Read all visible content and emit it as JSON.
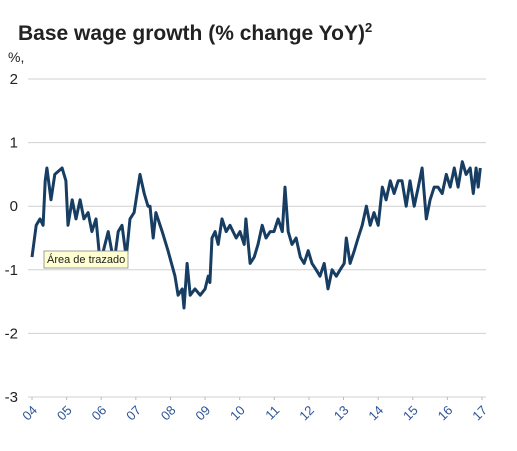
{
  "chart_data": {
    "type": "line",
    "title": "Base wage growth (% change YoY)",
    "title_superscript": "2",
    "y_unit_label": "%,",
    "tooltip": "Área de trazado",
    "xlim": [
      4,
      17
    ],
    "xticks": [
      {
        "value": 4,
        "label": "04"
      },
      {
        "value": 5,
        "label": "05"
      },
      {
        "value": 6,
        "label": "06"
      },
      {
        "value": 7,
        "label": "07"
      },
      {
        "value": 8,
        "label": "08"
      },
      {
        "value": 9,
        "label": "09"
      },
      10,
      11,
      12,
      13,
      14,
      15,
      16,
      17
    ],
    "ylim": [
      -3,
      2
    ],
    "yticks": [
      2,
      1,
      0,
      -1,
      -2,
      -3
    ],
    "grid": true,
    "x": [
      4.0,
      4.12,
      4.23,
      4.32,
      4.38,
      4.43,
      4.55,
      4.66,
      4.87,
      4.98,
      5.04,
      5.16,
      5.27,
      5.39,
      5.5,
      5.62,
      5.73,
      5.85,
      5.97,
      6.2,
      6.37,
      6.49,
      6.6,
      6.72,
      6.83,
      6.95,
      7.12,
      7.24,
      7.35,
      7.41,
      7.5,
      7.58,
      7.76,
      7.93,
      8.13,
      8.22,
      8.34,
      8.39,
      8.48,
      8.57,
      8.71,
      8.86,
      9.0,
      9.09,
      9.14,
      9.2,
      9.29,
      9.38,
      9.49,
      9.61,
      9.72,
      9.9,
      10.01,
      10.13,
      10.18,
      10.3,
      10.42,
      10.53,
      10.65,
      10.76,
      10.88,
      10.99,
      11.11,
      11.23,
      11.31,
      11.4,
      11.51,
      11.63,
      11.75,
      11.86,
      11.98,
      12.09,
      12.21,
      12.32,
      12.44,
      12.55,
      12.67,
      12.79,
      12.9,
      13.02,
      13.08,
      13.19,
      13.31,
      13.42,
      13.54,
      13.66,
      13.77,
      13.88,
      14.0,
      14.12,
      14.23,
      14.35,
      14.46,
      14.58,
      14.69,
      14.81,
      14.92,
      15.04,
      15.16,
      15.27,
      15.39,
      15.5,
      15.62,
      15.73,
      15.85,
      15.97,
      16.08,
      16.2,
      16.31,
      16.43,
      16.54,
      16.66,
      16.75,
      16.83,
      16.89,
      16.95
    ],
    "series": [
      {
        "color": "#173d63",
        "values": [
          -0.8,
          -0.3,
          -0.2,
          -0.3,
          0.4,
          0.6,
          0.1,
          0.5,
          0.6,
          0.4,
          -0.3,
          0.1,
          -0.2,
          0.1,
          -0.2,
          -0.1,
          -0.4,
          -0.2,
          -0.9,
          -0.4,
          -0.9,
          -0.4,
          -0.3,
          -0.8,
          -0.2,
          -0.1,
          0.5,
          0.2,
          0.0,
          0.0,
          -0.5,
          -0.1,
          -0.4,
          -0.7,
          -1.1,
          -1.4,
          -1.3,
          -1.6,
          -0.9,
          -1.4,
          -1.3,
          -1.4,
          -1.3,
          -1.1,
          -1.2,
          -0.5,
          -0.4,
          -0.6,
          -0.2,
          -0.4,
          -0.3,
          -0.5,
          -0.4,
          -0.6,
          -0.2,
          -0.9,
          -0.8,
          -0.6,
          -0.3,
          -0.5,
          -0.4,
          -0.4,
          -0.2,
          -0.4,
          0.3,
          -0.4,
          -0.6,
          -0.5,
          -0.8,
          -0.9,
          -0.7,
          -0.9,
          -1.0,
          -1.1,
          -0.9,
          -1.3,
          -1.0,
          -1.1,
          -1.0,
          -0.9,
          -0.5,
          -0.9,
          -0.7,
          -0.5,
          -0.3,
          0.0,
          -0.3,
          -0.1,
          -0.3,
          0.3,
          0.1,
          0.4,
          0.2,
          0.4,
          0.4,
          0.0,
          0.4,
          0.0,
          0.3,
          0.6,
          -0.2,
          0.1,
          0.3,
          0.3,
          0.2,
          0.5,
          0.3,
          0.6,
          0.3,
          0.7,
          0.5,
          0.6,
          0.2,
          0.6,
          0.3,
          0.6
        ]
      }
    ]
  }
}
